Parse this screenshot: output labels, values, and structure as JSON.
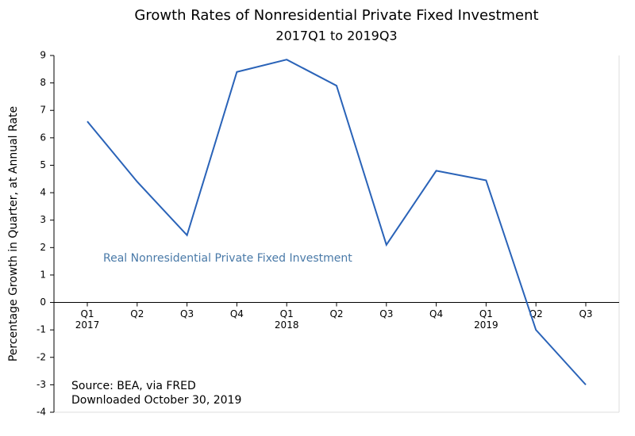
{
  "chart_data": {
    "type": "line",
    "title": "Growth Rates of Nonresidential Private Fixed Investment",
    "subtitle": "2017Q1 to 2019Q3",
    "y_label": "Percentage Growth in Quarter, at Annual Rate",
    "categories": [
      "Q1",
      "Q2",
      "Q3",
      "Q4",
      "Q1",
      "Q2",
      "Q3",
      "Q4",
      "Q1",
      "Q2",
      "Q3"
    ],
    "years": [
      "2017",
      null,
      null,
      null,
      "2018",
      null,
      null,
      null,
      "2019",
      null,
      null
    ],
    "series": [
      {
        "name": "Real Nonresidential Private Fixed Investment",
        "color": "#2a63b8",
        "values": [
          6.6,
          4.4,
          2.45,
          8.4,
          8.85,
          7.9,
          2.1,
          4.8,
          4.45,
          -1.0,
          -3.0
        ]
      }
    ],
    "ylim": [
      -4,
      9
    ],
    "yticks": [
      -4,
      -3,
      -2,
      -1,
      0,
      1,
      2,
      3,
      4,
      5,
      6,
      7,
      8,
      9
    ],
    "annotations": [
      "Source:  BEA, via FRED",
      "Downloaded October 30, 2019"
    ]
  }
}
